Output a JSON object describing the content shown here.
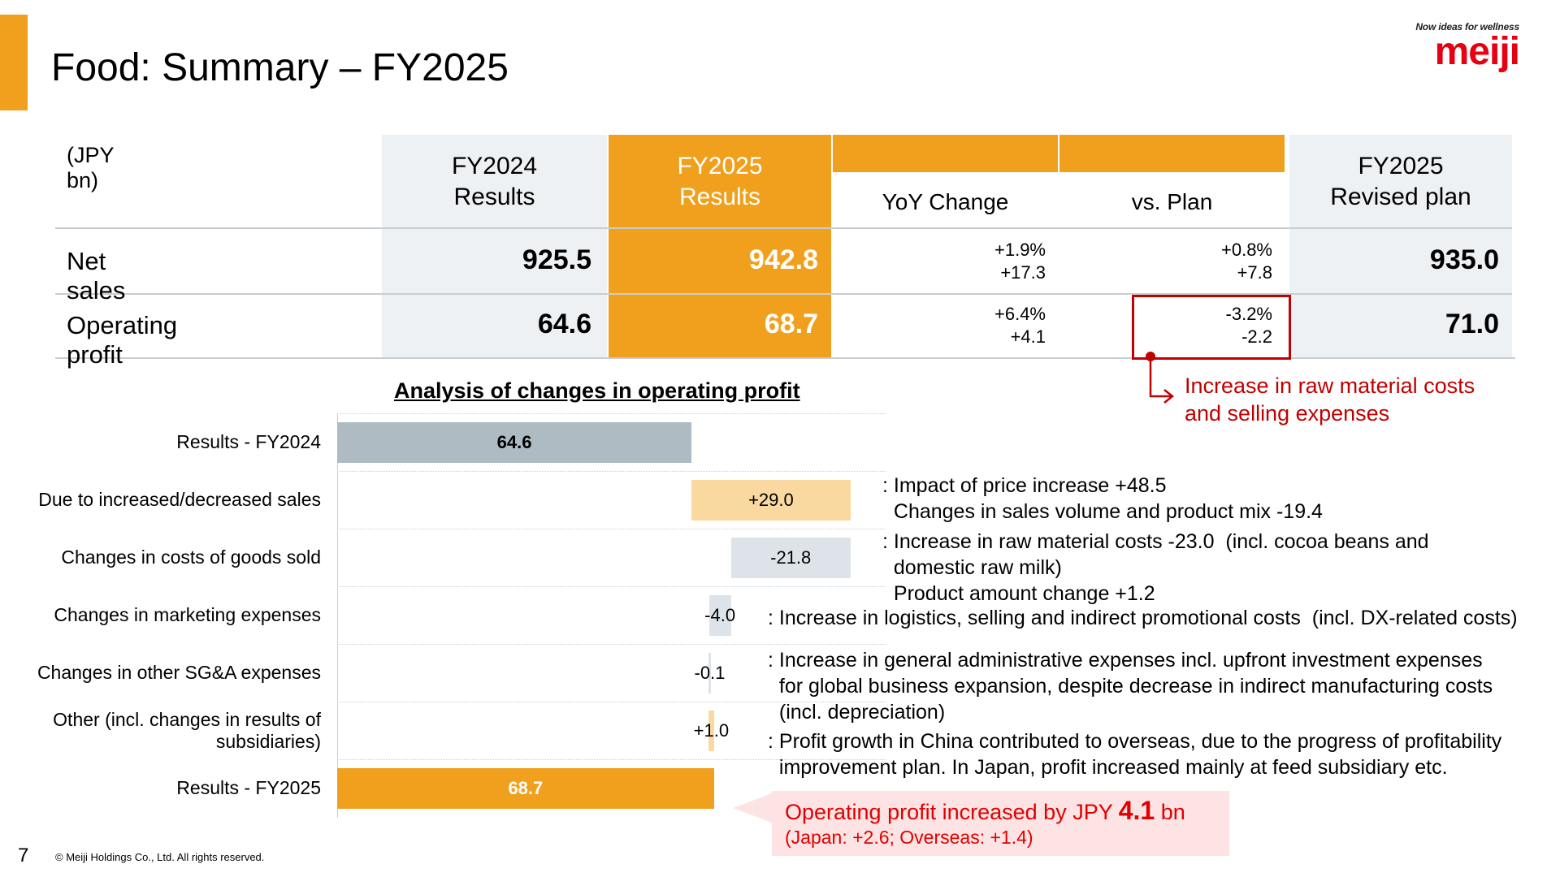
{
  "header": {
    "title": "Food: Summary – FY2025"
  },
  "logo": {
    "tagline": "Now ideas for wellness",
    "wordmark": "meiji",
    "color": "#E60012"
  },
  "colors": {
    "accent": "#F0A01C",
    "light_accent": "#F9D9A0",
    "gray_bar": "#AEBBC3",
    "light_gray": "#DDE3E8",
    "red": "#C00000"
  },
  "table": {
    "unit": "(JPY bn)",
    "columns": {
      "fy2024_line1": "FY2024",
      "fy2024_line2": "Results",
      "fy2025_line1": "FY2025",
      "fy2025_line2": "Results",
      "yoy": "YoY Change",
      "vsplan": "vs. Plan",
      "plan_line1": "FY2025",
      "plan_line2": "Revised plan"
    },
    "rows": [
      {
        "label": "Net sales",
        "fy2024": "925.5",
        "fy2025": "942.8",
        "yoy_pct": "+1.9%",
        "yoy_abs": "+17.3",
        "vs_pct": "+0.8%",
        "vs_abs": "+7.8",
        "plan": "935.0"
      },
      {
        "label": "Operating profit",
        "fy2024": "64.6",
        "fy2025": "68.7",
        "yoy_pct": "+6.4%",
        "yoy_abs": "+4.1",
        "vs_pct": "-3.2%",
        "vs_abs": "-2.2",
        "plan": "71.0"
      }
    ],
    "callout": {
      "line1": "Increase in raw material costs",
      "line2": "and selling expenses"
    }
  },
  "waterfall": {
    "title": "Analysis of changes in operating profit",
    "rows": [
      {
        "label": "Results - FY2024",
        "value": "64.6"
      },
      {
        "label": "Due to increased/decreased sales",
        "value": "+29.0"
      },
      {
        "label": "Changes in costs of goods sold",
        "value": "-21.8"
      },
      {
        "label": "Changes in marketing expenses",
        "value": "-4.0"
      },
      {
        "label": "Changes in other SG&A expenses",
        "value": "-0.1"
      },
      {
        "label_line1": "Other (incl. changes in results of",
        "label_line2": "subsidiaries)",
        "value": "+1.0"
      },
      {
        "label": "Results - FY2025",
        "value": "68.7"
      }
    ],
    "notes": {
      "sales_1": ": Impact of price increase +48.5",
      "sales_2": "  Changes in sales volume and product mix -19.4",
      "cogs_1": ": Increase in raw material costs -23.0  (incl. cocoa beans and",
      "cogs_2": "  domestic raw milk)",
      "cogs_3": "  Product amount change +1.2",
      "mkt_1": ": Increase in logistics, selling and indirect promotional costs  (incl. DX-related costs)",
      "sga_1": ": Increase in general administrative expenses incl. upfront investment expenses",
      "sga_2": "  for global business expansion, despite decrease in indirect manufacturing costs",
      "sga_3": "  (incl. depreciation)",
      "other_1": ": Profit growth in China contributed to overseas, due to the progress of profitability",
      "other_2": "  improvement plan. In Japan, profit increased mainly at feed subsidiary etc."
    },
    "summary": {
      "prefix": "Operating profit increased by JPY ",
      "amount": "4.1",
      "suffix": " bn",
      "detail": "(Japan: +2.6; Overseas: +1.4)"
    }
  },
  "chart_data": {
    "type": "bar",
    "title": "Analysis of changes in operating profit",
    "categories": [
      "Results - FY2024",
      "Due to increased/decreased sales",
      "Changes in costs of goods sold",
      "Changes in marketing expenses",
      "Changes in other SG&A expenses",
      "Other (incl. changes in results of subsidiaries)",
      "Results - FY2025"
    ],
    "values": [
      64.6,
      29.0,
      -21.8,
      -4.0,
      -0.1,
      1.0,
      68.7
    ]
  },
  "footer": {
    "page": "7",
    "copyright": "© Meiji Holdings Co., Ltd. All rights reserved."
  }
}
